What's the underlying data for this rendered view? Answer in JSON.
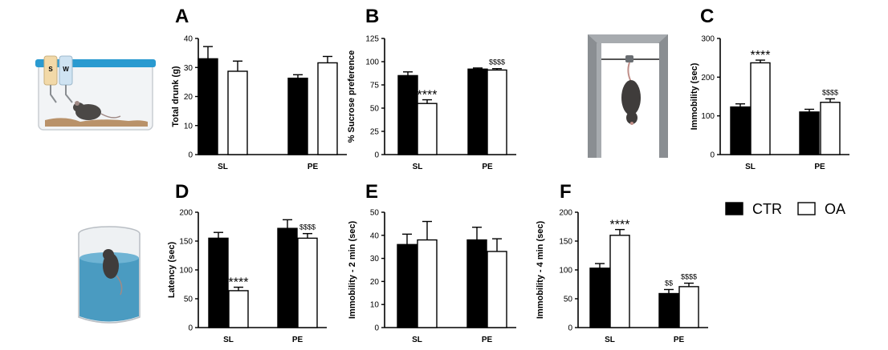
{
  "chart_data": [
    {
      "letter": "A",
      "type": "bar",
      "ylabel": "Total drunk (g)",
      "categories": [
        "SL",
        "PE"
      ],
      "ylim": [
        0,
        40
      ],
      "yticks": [
        0,
        10,
        20,
        30,
        40
      ],
      "series": [
        {
          "name": "CTR",
          "values": [
            33,
            26.3
          ],
          "errors": [
            4.2,
            1.2
          ]
        },
        {
          "name": "OA",
          "values": [
            28.7,
            31.6
          ],
          "errors": [
            3.5,
            2.2
          ]
        }
      ],
      "annotations": []
    },
    {
      "letter": "B",
      "type": "bar",
      "ylabel": "% Sucrose preference",
      "categories": [
        "SL",
        "PE"
      ],
      "ylim": [
        0,
        125
      ],
      "yticks": [
        0,
        25,
        50,
        75,
        100,
        125
      ],
      "series": [
        {
          "name": "CTR",
          "values": [
            85,
            92
          ],
          "errors": [
            4,
            1.2
          ]
        },
        {
          "name": "OA",
          "values": [
            55,
            91
          ],
          "errors": [
            4,
            1.5
          ]
        }
      ],
      "annotations": [
        {
          "category": 0,
          "series": 1,
          "text": "****"
        },
        {
          "category": 1,
          "series": 1,
          "text": "$$$$"
        }
      ]
    },
    {
      "letter": "C",
      "type": "bar",
      "ylabel": "Immobility (sec)",
      "categories": [
        "SL",
        "PE"
      ],
      "ylim": [
        0,
        300
      ],
      "yticks": [
        0,
        100,
        200,
        300
      ],
      "series": [
        {
          "name": "CTR",
          "values": [
            123,
            110
          ],
          "errors": [
            8,
            7
          ]
        },
        {
          "name": "OA",
          "values": [
            237,
            135
          ],
          "errors": [
            7,
            9
          ]
        }
      ],
      "annotations": [
        {
          "category": 0,
          "series": 1,
          "text": "****"
        },
        {
          "category": 1,
          "series": 1,
          "text": "$$$$"
        }
      ]
    },
    {
      "letter": "D",
      "type": "bar",
      "ylabel": "Latency (sec)",
      "categories": [
        "SL",
        "PE"
      ],
      "ylim": [
        0,
        200
      ],
      "yticks": [
        0,
        50,
        100,
        150,
        200
      ],
      "series": [
        {
          "name": "CTR",
          "values": [
            155,
            172
          ],
          "errors": [
            10,
            15
          ]
        },
        {
          "name": "OA",
          "values": [
            64,
            155
          ],
          "errors": [
            6,
            8
          ]
        }
      ],
      "annotations": [
        {
          "category": 0,
          "series": 1,
          "text": "****"
        },
        {
          "category": 1,
          "series": 1,
          "text": "$$$$"
        }
      ]
    },
    {
      "letter": "E",
      "type": "bar",
      "ylabel": "Immobility - 2 min (sec)",
      "categories": [
        "SL",
        "PE"
      ],
      "ylim": [
        0,
        50
      ],
      "yticks": [
        0,
        10,
        20,
        30,
        40,
        50
      ],
      "series": [
        {
          "name": "CTR",
          "values": [
            36,
            38
          ],
          "errors": [
            4.5,
            5.5
          ]
        },
        {
          "name": "OA",
          "values": [
            38,
            33
          ],
          "errors": [
            8,
            5.5
          ]
        }
      ],
      "annotations": []
    },
    {
      "letter": "F",
      "type": "bar",
      "ylabel": "Immobility - 4 min (sec)",
      "categories": [
        "SL",
        "PE"
      ],
      "ylim": [
        0,
        200
      ],
      "yticks": [
        0,
        50,
        100,
        150,
        200
      ],
      "series": [
        {
          "name": "CTR",
          "values": [
            103,
            59
          ],
          "errors": [
            8,
            7
          ]
        },
        {
          "name": "OA",
          "values": [
            160,
            71
          ],
          "errors": [
            10,
            6
          ]
        }
      ],
      "annotations": [
        {
          "category": 0,
          "series": 1,
          "text": "****"
        },
        {
          "category": 1,
          "series": 0,
          "text": "$$"
        },
        {
          "category": 1,
          "series": 1,
          "text": "$$$$"
        }
      ]
    }
  ],
  "legend": [
    {
      "label": "CTR",
      "fill": "#000000"
    },
    {
      "label": "OA",
      "fill": "#ffffff"
    }
  ],
  "illustrations": {
    "sucrose_bottle_s": "S",
    "sucrose_bottle_w": "W"
  },
  "colors": {
    "ctr": "#000000",
    "oa": "#ffffff",
    "water": "#4a9bc1",
    "cage_lid": "#2a9ad0",
    "frame": "#8a8e92"
  }
}
